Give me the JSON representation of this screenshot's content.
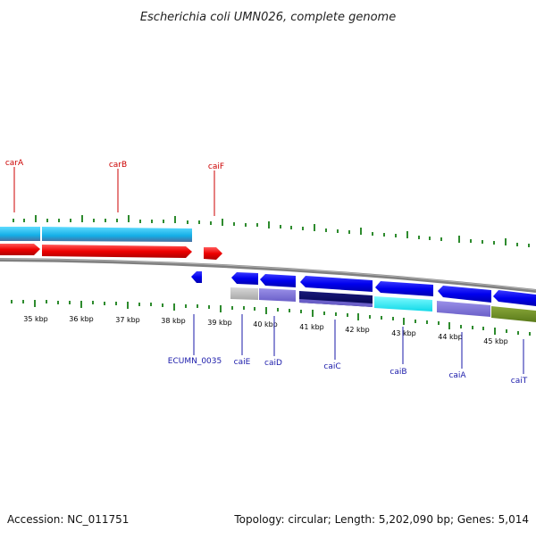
{
  "title": "Escherichia coli UMN026, complete genome",
  "footer": {
    "accession": "Accession: NC_011751",
    "topology": "Topology: circular; Length: 5,202,090 bp; Genes: 5,014"
  },
  "colors": {
    "forward_gene": "#ff0000",
    "reverse_gene": "#0000ff",
    "forward_label": "#cc0000",
    "reverse_label": "#1a1aaa",
    "backbone": "#808080",
    "tick": "#2e8b2e"
  },
  "ruler": {
    "labels": [
      "35 kbp",
      "36 kbp",
      "37 kbp",
      "38 kbp",
      "39 kbp",
      "40 kbp",
      "41 kbp",
      "42 kbp",
      "43 kbp",
      "44 kbp",
      "45 kbp"
    ]
  },
  "genes_forward": [
    "carA",
    "carB",
    "caiF"
  ],
  "genes_reverse": [
    "ECUMN_0035",
    "caiE",
    "caiD",
    "caiC",
    "caiB",
    "caiA",
    "caiT"
  ]
}
